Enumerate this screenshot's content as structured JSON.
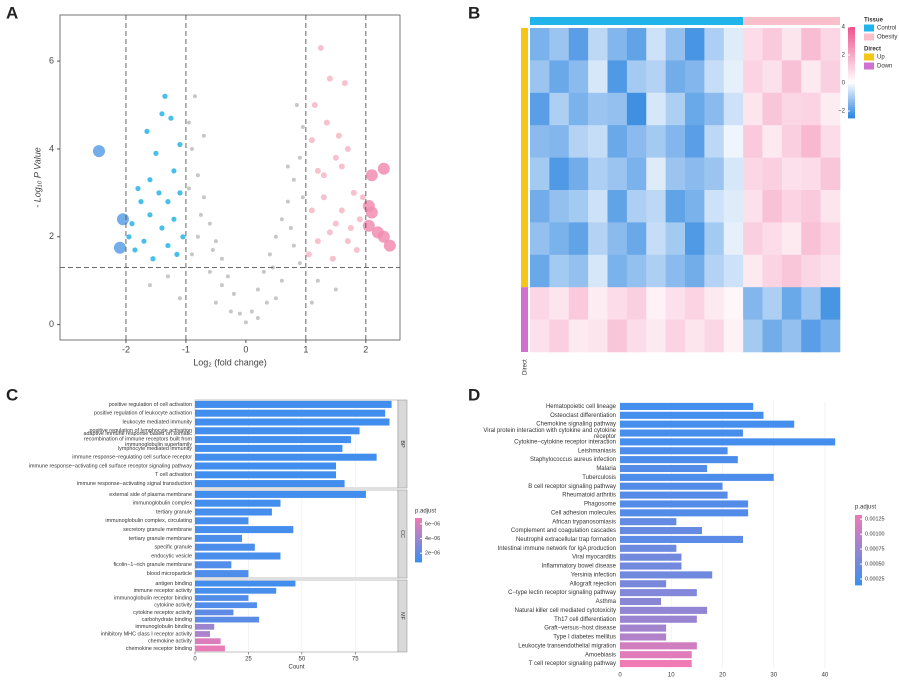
{
  "chart_data": [
    {
      "type": "scatter",
      "label": "A",
      "xlabel": "Log₂ (fold change)",
      "ylabel": "- Log₁₀ P Value",
      "xlim": [
        -3.1,
        2.57
      ],
      "ylim": [
        -0.35,
        7.05
      ],
      "xticks": [
        -2,
        -1,
        0,
        1,
        2
      ],
      "yticks": [
        0,
        2,
        4,
        6
      ],
      "vlines": [
        -2,
        -1,
        1,
        2
      ],
      "hline": 1.3,
      "series": [
        {
          "color": "#bdbdbd",
          "marker_size": 2,
          "x": [
            0,
            0.1,
            -0.1,
            0.2,
            -0.2,
            0.3,
            -0.3,
            0.4,
            -0.4,
            0.5,
            -0.5,
            0.6,
            -0.6,
            0.7,
            -0.7,
            0.8,
            -0.8,
            0.9,
            -0.9,
            0.95,
            -0.95,
            0.6,
            -0.6,
            0.8,
            -0.8,
            0.9,
            -0.9,
            0.5,
            -0.5,
            0.7,
            -0.7,
            0.85,
            -0.85,
            0.2,
            -0.25,
            0.35,
            -0.4,
            0.45,
            -0.55,
            1.2,
            1.5,
            -1.3,
            -1.6,
            -1.1,
            1.1,
            0.95,
            -0.95,
            0.75,
            -0.75
          ],
          "values": [
            0.05,
            0.3,
            0.25,
            0.8,
            0.7,
            1.2,
            1.1,
            1.6,
            1.5,
            2.0,
            1.9,
            2.4,
            2.3,
            2.8,
            2.9,
            3.3,
            3.4,
            3.8,
            4.0,
            4.5,
            4.6,
            1.0,
            1.2,
            1.8,
            2.0,
            1.4,
            1.6,
            0.6,
            0.5,
            3.6,
            4.3,
            5.0,
            5.2,
            0.15,
            0.3,
            0.5,
            0.9,
            1.3,
            1.7,
            1.0,
            0.8,
            1.1,
            0.9,
            0.6,
            0.5,
            2.9,
            3.1,
            2.2,
            2.5
          ]
        },
        {
          "color": "#27b4e6",
          "marker_size": 2.6,
          "x": [
            -1.1,
            -1.2,
            -1.3,
            -1.4,
            -1.5,
            -1.6,
            -1.7,
            -1.8,
            -1.9,
            -1.05,
            -1.15,
            -1.25,
            -1.35,
            -1.45,
            -1.55,
            -1.65,
            -1.75,
            -1.85,
            -1.95,
            -1.1,
            -1.2,
            -1.3,
            -1.4,
            -1.6
          ],
          "values": [
            4.1,
            3.5,
            2.8,
            2.2,
            3.9,
            2.5,
            1.9,
            3.1,
            2.3,
            2.0,
            1.6,
            4.7,
            5.2,
            3.0,
            1.5,
            4.4,
            2.8,
            1.7,
            2.0,
            3.0,
            2.4,
            1.8,
            4.8,
            3.3
          ]
        },
        {
          "color": "#f7b6c6",
          "marker_size": 3,
          "x": [
            1.1,
            1.2,
            1.3,
            1.4,
            1.5,
            1.6,
            1.7,
            1.8,
            1.9,
            1.05,
            1.15,
            1.25,
            1.35,
            1.45,
            1.55,
            1.65,
            1.75,
            1.85,
            1.95,
            1.1,
            1.2,
            1.3,
            1.4,
            1.6,
            1.7,
            1.5
          ],
          "values": [
            4.2,
            3.5,
            2.9,
            2.1,
            3.8,
            2.6,
            1.9,
            3.0,
            2.4,
            1.6,
            5.0,
            6.3,
            4.6,
            1.5,
            4.3,
            5.5,
            2.2,
            1.7,
            2.9,
            2.6,
            1.9,
            3.4,
            5.6,
            3.6,
            4.0,
            2.3
          ]
        },
        {
          "color": "#5b9fe6",
          "marker_size": 6,
          "x": [
            -2.45,
            -2.05,
            -2.1
          ],
          "values": [
            3.95,
            2.4,
            1.75
          ]
        },
        {
          "color": "#f18db1",
          "marker_size": 6,
          "x": [
            2.1,
            2.3,
            2.05,
            2.1,
            2.2,
            2.3,
            2.4,
            2.05
          ],
          "values": [
            3.4,
            3.55,
            2.7,
            2.55,
            2.1,
            2.0,
            1.8,
            2.25
          ]
        }
      ]
    },
    {
      "type": "heatmap",
      "label": "B",
      "values": [
        [
          -1.6,
          -1.2,
          -2.0,
          -0.8,
          -1.5,
          -1.9,
          -0.6,
          -1.3,
          -2.2,
          -1.0,
          -0.4,
          0.8,
          1.2,
          0.6,
          1.5,
          0.9
        ],
        [
          -1.2,
          -1.8,
          -1.4,
          -0.5,
          -2.1,
          -1.1,
          -0.9,
          -1.7,
          -1.5,
          -0.7,
          -0.3,
          1.0,
          0.7,
          1.4,
          0.5,
          1.1
        ],
        [
          -2.0,
          -1.0,
          -1.6,
          -1.2,
          -1.3,
          -2.3,
          -0.5,
          -1.0,
          -1.8,
          -1.4,
          -0.6,
          0.6,
          1.3,
          0.9,
          1.0,
          0.4
        ],
        [
          -1.4,
          -1.5,
          -0.9,
          -0.7,
          -1.8,
          -1.4,
          -1.1,
          -1.5,
          -2.0,
          -0.8,
          -0.2,
          1.2,
          0.5,
          1.1,
          1.6,
          0.8
        ],
        [
          -1.1,
          -2.1,
          -1.7,
          -1.0,
          -1.2,
          -1.6,
          -0.4,
          -1.2,
          -1.4,
          -1.2,
          -0.5,
          0.9,
          1.1,
          0.7,
          0.8,
          1.3
        ],
        [
          -1.7,
          -1.3,
          -1.1,
          -0.6,
          -1.9,
          -1.0,
          -0.8,
          -1.9,
          -1.6,
          -0.6,
          -0.4,
          0.7,
          1.4,
          1.0,
          1.2,
          0.6
        ],
        [
          -1.3,
          -1.6,
          -1.9,
          -0.9,
          -1.4,
          -1.8,
          -0.7,
          -1.1,
          -2.1,
          -1.1,
          -0.3,
          1.1,
          0.8,
          0.5,
          1.4,
          1.0
        ],
        [
          -1.8,
          -1.1,
          -1.3,
          -0.5,
          -1.6,
          -1.3,
          -1.0,
          -1.4,
          -1.7,
          -0.9,
          -0.6,
          0.5,
          1.0,
          1.3,
          0.9,
          0.7
        ],
        [
          0.9,
          0.6,
          1.2,
          0.4,
          0.8,
          1.1,
          0.3,
          0.7,
          1.0,
          0.5,
          0.2,
          -1.5,
          -1.0,
          -1.8,
          -1.2,
          -2.2
        ],
        [
          0.7,
          1.1,
          0.5,
          0.6,
          1.3,
          0.8,
          0.5,
          1.0,
          0.6,
          0.9,
          0.3,
          -1.1,
          -1.7,
          -1.3,
          -2.0,
          -1.6
        ]
      ],
      "clim": [
        -2.5,
        4
      ],
      "colors": [
        "#2f86e0",
        "#ffffff",
        "#ee4f8a"
      ],
      "colorbar_ticks": [
        4,
        2,
        0,
        {
          "value": -2,
          "label": "−2"
        }
      ],
      "column_annotation": {
        "title": "Tissue",
        "groups": [
          {
            "name": "Control",
            "color": "#1fb5ea",
            "n": 11
          },
          {
            "name": "Obesity",
            "color": "#f9c0cb",
            "n": 5
          }
        ]
      },
      "row_annotation": {
        "title": "Direct",
        "groups": [
          {
            "name": "Up",
            "color": "#f5c518",
            "n": 8
          },
          {
            "name": "Down",
            "color": "#d070d0",
            "n": 2
          }
        ]
      },
      "row_annotation_name": "Direct"
    },
    {
      "type": "faceted_bar",
      "label": "C",
      "xlabel": "Count",
      "xlim": [
        0,
        95
      ],
      "xticks": [
        0,
        25,
        50,
        75
      ],
      "legend_title": "p.adjust",
      "colormap": [
        "#3c8ff0",
        "#f27ab3"
      ],
      "clim": [
        8e-07,
        6.8e-06
      ],
      "cticks": [
        {
          "value": 6e-06,
          "label": "6e−06"
        },
        {
          "value": 4e-06,
          "label": "4e−06"
        },
        {
          "value": 2e-06,
          "label": "2e−06"
        }
      ],
      "facets": [
        {
          "name": "BP",
          "categories": [
            "positive regulation of cell activation",
            "positive regulation of leukocyte activation",
            "leukocyte mediated immunity",
            "positive regulation of lymphocyte activation",
            "adaptive immune response based on somatic\nrecombination of immune receptors built from\nimmunoglobulin superfamily",
            "lymphocyte mediated immunity",
            "immune response−regulating cell surface receptor",
            "immune response−activating cell surface receptor signaling pathway",
            "T cell activation",
            "immune response−activating signal transduction"
          ],
          "values": [
            92,
            89,
            91,
            77,
            73,
            69,
            85,
            66,
            66,
            70
          ],
          "p_adjust": [
            1e-06,
            1e-06,
            1e-06,
            1e-06,
            1e-06,
            1e-06,
            1e-06,
            1e-06,
            1e-06,
            1e-06
          ]
        },
        {
          "name": "CC",
          "categories": [
            "external side of plasma membrane",
            "immunoglobulin complex",
            "tertiary granule",
            "immunoglobulin complex, circulating",
            "secretory granule membrane",
            "tertiary granule membrane",
            "specific granule",
            "endocytic vesicle",
            "ficolin−1−rich granule membrane",
            "blood microparticle"
          ],
          "values": [
            80,
            40,
            36,
            25,
            46,
            22,
            28,
            40,
            17,
            25
          ],
          "p_adjust": [
            1e-06,
            1e-06,
            1.1e-06,
            1.2e-06,
            1.1e-06,
            1.3e-06,
            1.3e-06,
            1.2e-06,
            1.5e-06,
            1.4e-06
          ]
        },
        {
          "name": "MF",
          "categories": [
            "antigen binding",
            "immune receptor activity",
            "immunoglobulin receptor binding",
            "cytokine activity",
            "cytokine receptor activity",
            "carbohydrate binding",
            "immunoglobulin binding",
            "inhibitory MHC class I receptor activity",
            "chemokine activity",
            "chemokine receptor binding"
          ],
          "values": [
            47,
            38,
            25,
            29,
            18,
            30,
            9,
            7,
            12,
            14
          ],
          "p_adjust": [
            1e-06,
            1.2e-06,
            1.5e-06,
            1.5e-06,
            2e-06,
            1.8e-06,
            4e-06,
            4.5e-06,
            6e-06,
            6.5e-06
          ]
        }
      ]
    },
    {
      "type": "bar_h",
      "label": "D",
      "xlim": [
        0,
        44.5
      ],
      "xticks": [
        0,
        10,
        20,
        30,
        40
      ],
      "legend_title": "p.adjust",
      "colormap": [
        "#3c8ff0",
        "#f27ab3"
      ],
      "clim": [
        0.00015,
        0.00132
      ],
      "cticks": [
        {
          "value": 0.00125,
          "label": "0.00125"
        },
        {
          "value": 0.001,
          "label": "0.00100"
        },
        {
          "value": 0.00075,
          "label": "0.00075"
        },
        {
          "value": 0.0005,
          "label": "0.00050"
        },
        {
          "value": 0.00025,
          "label": "0.00025"
        }
      ],
      "categories": [
        "Hematopoietic cell lineage",
        "Osteoclast differentiation",
        "Chemokine signaling pathway",
        "Viral protein interaction with cytokine and cytokine\nreceptor",
        "Cytokine−cytokine receptor interaction",
        "Leishmaniasis",
        "Staphylococcus aureus infection",
        "Malaria",
        "Tuberculosis",
        "B cell receptor signaling pathway",
        "Rheumatoid arthritis",
        "Phagosome",
        "Cell adhesion molecules",
        "African trypanosomiasis",
        "Complement and coagulation cascades",
        "Neutrophil extracellular trap formation",
        "Intestinal immune network for IgA production",
        "Viral myocarditis",
        "Inflammatory bowel disease",
        "Yersinia infection",
        "Allograft rejection",
        "C−type lectin receptor signaling pathway",
        "Asthma",
        "Natural killer cell mediated cytotoxicity",
        "Th17 cell differentiation",
        "Graft−versus−host disease",
        "Type I diabetes mellitus",
        "Leukocyte transendothelial migration",
        "Amoebiasis",
        "T cell receptor signaling pathway"
      ],
      "values": [
        26,
        28,
        34,
        24,
        42,
        21,
        23,
        17,
        30,
        20,
        21,
        25,
        25,
        11,
        16,
        24,
        11,
        12,
        12,
        18,
        9,
        15,
        8,
        17,
        15,
        9,
        9,
        15,
        14,
        14
      ],
      "p_adjust": [
        0.0002,
        0.0002,
        0.0002,
        0.00022,
        0.0002,
        0.00025,
        0.00025,
        0.0003,
        0.00025,
        0.0003,
        0.00032,
        0.0003,
        0.0003,
        0.0004,
        0.00042,
        0.00035,
        0.00045,
        0.0005,
        0.0005,
        0.00048,
        0.00055,
        0.0006,
        0.00065,
        0.0007,
        0.00075,
        0.0008,
        0.0009,
        0.0011,
        0.0012,
        0.0013
      ]
    }
  ]
}
